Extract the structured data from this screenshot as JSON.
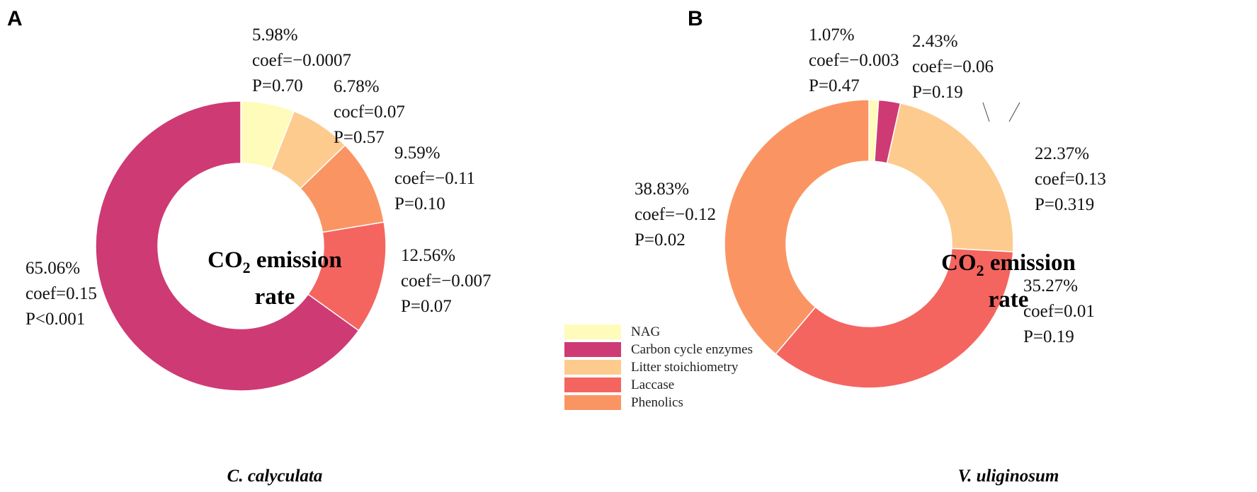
{
  "chart_data": [
    {
      "type": "pie",
      "variant": "donut",
      "panel": "A",
      "center_label": {
        "line1_main": "CO",
        "line1_sub": "2",
        "line1_rest": " emission",
        "line2": "rate"
      },
      "species": "C. calyculata",
      "slices": [
        {
          "category": "NAG",
          "percent_text": "5.98%",
          "value": 5.98,
          "coef": "coef=−0.0007",
          "p": "P=0.70",
          "color": "#FFFBBB"
        },
        {
          "category": "Litter stoichiometry",
          "percent_text": "6.78%",
          "value": 6.78,
          "coef": "cocf=0.07",
          "p": "P=0.57",
          "color": "#FDCB8E"
        },
        {
          "category": "Phenolics",
          "percent_text": "9.59%",
          "value": 9.59,
          "coef": "coef=−0.11",
          "p": "P=0.10",
          "color": "#FA9563"
        },
        {
          "category": "Laccase",
          "percent_text": "12.56%",
          "value": 12.56,
          "coef": "coef=−0.007",
          "p": "P=0.07",
          "color": "#F46560"
        },
        {
          "category": "Carbon cycle enzymes",
          "percent_text": "65.06%",
          "value": 65.06,
          "coef": "coef=0.15",
          "p": "P<0.001",
          "color": "#CE3A74"
        }
      ]
    },
    {
      "type": "pie",
      "variant": "donut",
      "panel": "B",
      "center_label": {
        "line1_main": "CO",
        "line1_sub": "2",
        "line1_rest": " emission",
        "line2": "rate"
      },
      "species": "V. uliginosum",
      "slices": [
        {
          "category": "NAG",
          "percent_text": "1.07%",
          "value": 1.07,
          "coef": "coef=−0.003",
          "p": "P=0.47",
          "color": "#FFFBBB"
        },
        {
          "category": "Carbon cycle enzymes",
          "percent_text": "2.43%",
          "value": 2.43,
          "coef": "coef=−0.06",
          "p": "P=0.19",
          "color": "#CE3A74"
        },
        {
          "category": "Litter stoichiometry",
          "percent_text": "22.37%",
          "value": 22.37,
          "coef": "coef=0.13",
          "p": "P=0.319",
          "color": "#FDCB8E"
        },
        {
          "category": "Laccase",
          "percent_text": "35.27%",
          "value": 35.27,
          "coef": "coef=0.01",
          "p": "P=0.19",
          "color": "#F46560"
        },
        {
          "category": "Phenolics",
          "percent_text": "38.83%",
          "value": 38.83,
          "coef": "coef=−0.12",
          "p": "P=0.02",
          "color": "#FA9563"
        }
      ]
    }
  ],
  "legend": [
    {
      "label": "NAG",
      "color": "#FFFBBB"
    },
    {
      "label": "Carbon cycle enzymes",
      "color": "#CE3A74"
    },
    {
      "label": "Litter stoichiometry",
      "color": "#FDCB8E"
    },
    {
      "label": "Laccase",
      "color": "#F46560"
    },
    {
      "label": "Phenolics",
      "color": "#FA9563"
    }
  ]
}
